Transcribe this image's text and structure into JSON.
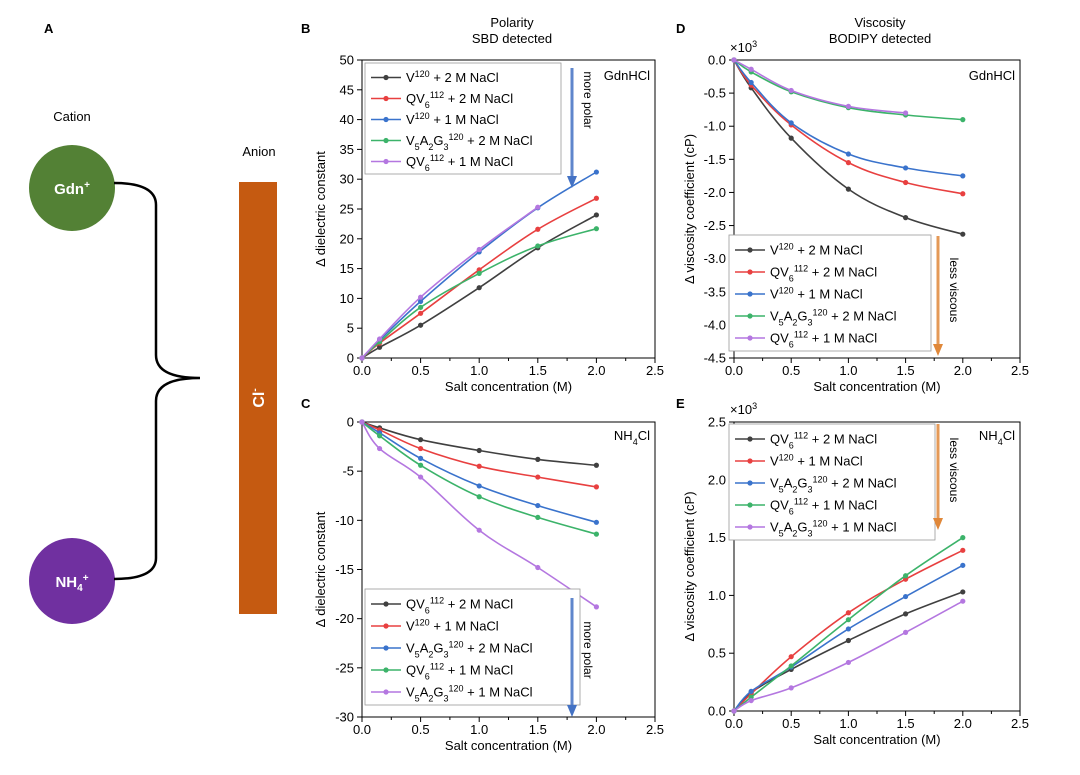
{
  "panel_a": {
    "letter": "A",
    "cation_label": "Cation",
    "anion_label": "Anion",
    "gdn_label": "Gdn",
    "gdn_sup": "+",
    "nh4_label": "NH",
    "nh4_sub": "4",
    "nh4_sup": "+",
    "anion_text": "Cl",
    "anion_sup": "-",
    "colors": {
      "gdn": "#538135",
      "nh4": "#7030A0",
      "anion": "#C55A11"
    }
  },
  "column_titles": {
    "polarity": [
      "Polarity",
      "SBD detected"
    ],
    "viscosity": [
      "Viscosity",
      "BODIPY detected"
    ]
  },
  "series_colors": {
    "V120_2M": "#404040",
    "QV6_2M": "#e84040",
    "V120_1M": "#3a73cc",
    "V5A2G3_2M": "#3cb36a",
    "QV6_1M": "#b477e0"
  },
  "chart_data": [
    {
      "panel": "B",
      "type": "line",
      "annotation": "GdnHCl",
      "arrow_label": "more polar",
      "arrow_color": "#4472C4",
      "xlabel": "Salt concentration (M)",
      "ylabel": "Δ dielectric constant",
      "xlim": [
        0,
        2.5
      ],
      "ylim": [
        0,
        50
      ],
      "xticks": [
        "0.0",
        "0.5",
        "1.0",
        "1.5",
        "2.0",
        "2.5"
      ],
      "yticks": [
        "0",
        "5",
        "10",
        "15",
        "20",
        "25",
        "30",
        "35",
        "40",
        "45",
        "50"
      ],
      "legend_position": "top-left",
      "series": [
        {
          "key": "V120_2M",
          "legend": [
            "V",
            "120",
            " + 2 M NaCl"
          ],
          "x": [
            0,
            0.15,
            0.5,
            1.0,
            1.5,
            2.0
          ],
          "y": [
            0,
            1.8,
            5.5,
            11.8,
            18.5,
            24.0
          ]
        },
        {
          "key": "QV6_2M",
          "legend": [
            "QV",
            "6",
            "112",
            " + 2 M NaCl"
          ],
          "x": [
            0,
            0.15,
            0.5,
            1.0,
            1.5,
            2.0
          ],
          "y": [
            0,
            2.5,
            7.5,
            14.8,
            21.6,
            26.8
          ]
        },
        {
          "key": "V120_1M",
          "legend": [
            "V",
            "120",
            " + 1 M NaCl"
          ],
          "x": [
            0,
            0.15,
            0.5,
            1.0,
            1.5,
            2.0
          ],
          "y": [
            0,
            3.0,
            9.5,
            17.8,
            25.2,
            31.2
          ]
        },
        {
          "key": "V5A2G3_2M",
          "legend": [
            "V5A2G3",
            "120",
            " + 2 M NaCl"
          ],
          "x": [
            0,
            0.15,
            0.5,
            1.0,
            1.5,
            2.0
          ],
          "y": [
            0,
            2.7,
            8.5,
            14.2,
            18.8,
            21.7
          ]
        },
        {
          "key": "QV6_1M",
          "legend": [
            "QV",
            "6",
            "112",
            " + 1 M NaCl"
          ],
          "x": [
            0,
            0.15,
            0.5,
            1.0,
            1.5
          ],
          "y": [
            0,
            3.2,
            10.2,
            18.2,
            25.3
          ]
        }
      ]
    },
    {
      "panel": "C",
      "type": "line",
      "annotation": "NH4Cl",
      "arrow_label": "more polar",
      "arrow_color": "#4472C4",
      "xlabel": "Salt concentration (M)",
      "ylabel": "Δ dielectric constant",
      "xlim": [
        0,
        2.5
      ],
      "ylim": [
        -30,
        0
      ],
      "xticks": [
        "0.0",
        "0.5",
        "1.0",
        "1.5",
        "2.0",
        "2.5"
      ],
      "yticks": [
        "-30",
        "-25",
        "-20",
        "-15",
        "-10",
        "-5",
        "0"
      ],
      "legend_position": "bottom-left",
      "series": [
        {
          "key": "QV6_2M",
          "color_key": "V120_2M",
          "legend": [
            "QV",
            "6",
            "112",
            " + 2 M NaCl"
          ],
          "x": [
            0,
            0.15,
            0.5,
            1.0,
            1.5,
            2.0
          ],
          "y": [
            0,
            -0.6,
            -1.8,
            -2.9,
            -3.8,
            -4.4
          ]
        },
        {
          "key": "V120_1M",
          "color_key": "QV6_2M",
          "legend": [
            "V",
            "120",
            " + 1 M NaCl"
          ],
          "x": [
            0,
            0.15,
            0.5,
            1.0,
            1.5,
            2.0
          ],
          "y": [
            0,
            -0.8,
            -2.7,
            -4.5,
            -5.6,
            -6.6
          ]
        },
        {
          "key": "V5A2G3_2M",
          "color_key": "V120_1M",
          "legend": [
            "V5A2G3",
            "120",
            " + 2 M NaCl"
          ],
          "x": [
            0,
            0.15,
            0.5,
            1.0,
            1.5,
            2.0
          ],
          "y": [
            0,
            -1.1,
            -3.7,
            -6.5,
            -8.5,
            -10.2
          ]
        },
        {
          "key": "QV6_1M",
          "color_key": "V5A2G3_2M",
          "legend": [
            "QV",
            "6",
            "112",
            " + 1 M NaCl"
          ],
          "x": [
            0,
            0.15,
            0.5,
            1.0,
            1.5,
            2.0
          ],
          "y": [
            0,
            -1.4,
            -4.4,
            -7.6,
            -9.7,
            -11.4
          ]
        },
        {
          "key": "V5A2G3_1M",
          "color_key": "QV6_1M",
          "legend": [
            "V5A2G3",
            "120",
            " + 1 M NaCl"
          ],
          "x": [
            0,
            0.15,
            0.5,
            1.0,
            1.5,
            2.0
          ],
          "y": [
            0,
            -2.7,
            -5.6,
            -11.0,
            -14.8,
            -18.8
          ]
        }
      ]
    },
    {
      "panel": "D",
      "type": "line",
      "annotation": "GdnHCl",
      "arrow_label": "less viscous",
      "arrow_color": "#E0883A",
      "multiplier": "×10",
      "multiplier_exp": "3",
      "xlabel": "Salt concentration (M)",
      "ylabel": "Δ viscosity coefficient (cP)",
      "xlim": [
        0,
        2.5
      ],
      "ylim": [
        -4.5,
        0
      ],
      "xticks": [
        "0.0",
        "0.5",
        "1.0",
        "1.5",
        "2.0",
        "2.5"
      ],
      "yticks": [
        "-4.5",
        "-4.0",
        "-3.5",
        "-3.0",
        "-2.5",
        "-2.0",
        "-1.5",
        "-1.0",
        "-0.5",
        "0.0"
      ],
      "legend_position": "bottom-left",
      "series": [
        {
          "key": "V120_2M",
          "legend": [
            "V",
            "120",
            " + 2 M NaCl"
          ],
          "x": [
            0,
            0.15,
            0.5,
            1.0,
            1.5,
            2.0
          ],
          "y": [
            0,
            -0.42,
            -1.18,
            -1.95,
            -2.38,
            -2.63
          ]
        },
        {
          "key": "QV6_2M",
          "legend": [
            "QV",
            "6",
            "112",
            " + 2 M NaCl"
          ],
          "x": [
            0,
            0.15,
            0.5,
            1.0,
            1.5,
            2.0
          ],
          "y": [
            0,
            -0.38,
            -0.98,
            -1.55,
            -1.85,
            -2.02
          ]
        },
        {
          "key": "V120_1M",
          "legend": [
            "V",
            "120",
            " + 1 M NaCl"
          ],
          "x": [
            0,
            0.15,
            0.5,
            1.0,
            1.5,
            2.0
          ],
          "y": [
            0,
            -0.34,
            -0.95,
            -1.42,
            -1.63,
            -1.75
          ]
        },
        {
          "key": "V5A2G3_2M",
          "legend": [
            "V5A2G3",
            "120",
            " + 2 M NaCl"
          ],
          "x": [
            0,
            0.15,
            0.5,
            1.0,
            1.5,
            2.0
          ],
          "y": [
            0,
            -0.18,
            -0.48,
            -0.72,
            -0.83,
            -0.9
          ]
        },
        {
          "key": "QV6_1M",
          "legend": [
            "QV",
            "6",
            "112",
            " + 1 M NaCl"
          ],
          "x": [
            0,
            0.15,
            0.5,
            1.0,
            1.5
          ],
          "y": [
            0,
            -0.14,
            -0.46,
            -0.7,
            -0.8
          ]
        }
      ]
    },
    {
      "panel": "E",
      "type": "line",
      "annotation": "NH4Cl",
      "arrow_label": "less viscous",
      "arrow_color": "#E0883A",
      "multiplier": "×10",
      "multiplier_exp": "3",
      "xlabel": "Salt concentration (M)",
      "ylabel": "Δ viscosity coefficient (cP)",
      "xlim": [
        0,
        2.5
      ],
      "ylim": [
        0,
        2.5
      ],
      "xticks": [
        "0.0",
        "0.5",
        "1.0",
        "1.5",
        "2.0",
        "2.5"
      ],
      "yticks": [
        "0.0",
        "0.5",
        "1.0",
        "1.5",
        "2.0",
        "2.5"
      ],
      "legend_position": "top-left",
      "series": [
        {
          "key": "QV6_2M",
          "color_key": "V120_2M",
          "legend": [
            "QV",
            "6",
            "112",
            " + 2 M NaCl"
          ],
          "x": [
            0,
            0.15,
            0.5,
            1.0,
            1.5,
            2.0
          ],
          "y": [
            0,
            0.16,
            0.36,
            0.61,
            0.84,
            1.03
          ]
        },
        {
          "key": "V120_1M",
          "color_key": "QV6_2M",
          "legend": [
            "V",
            "120",
            " + 1 M NaCl"
          ],
          "x": [
            0,
            0.15,
            0.5,
            1.0,
            1.5,
            2.0
          ],
          "y": [
            0,
            0.15,
            0.47,
            0.85,
            1.14,
            1.39
          ]
        },
        {
          "key": "V5A2G3_2M",
          "color_key": "V120_1M",
          "legend": [
            "V5A2G3",
            "120",
            " + 2 M NaCl"
          ],
          "x": [
            0,
            0.15,
            0.5,
            1.0,
            1.5,
            2.0
          ],
          "y": [
            0,
            0.17,
            0.38,
            0.71,
            0.99,
            1.26
          ]
        },
        {
          "key": "QV6_1M",
          "color_key": "V5A2G3_2M",
          "legend": [
            "QV",
            "6",
            "112",
            " + 1 M NaCl"
          ],
          "x": [
            0,
            0.15,
            0.5,
            1.0,
            1.5,
            2.0
          ],
          "y": [
            0,
            0.12,
            0.39,
            0.79,
            1.17,
            1.5
          ]
        },
        {
          "key": "V5A2G3_1M",
          "color_key": "QV6_1M",
          "legend": [
            "V5A2G3",
            "120",
            " + 1 M NaCl"
          ],
          "x": [
            0,
            0.15,
            0.5,
            1.0,
            1.5,
            2.0
          ],
          "y": [
            0,
            0.09,
            0.2,
            0.42,
            0.68,
            0.95
          ]
        }
      ]
    }
  ]
}
